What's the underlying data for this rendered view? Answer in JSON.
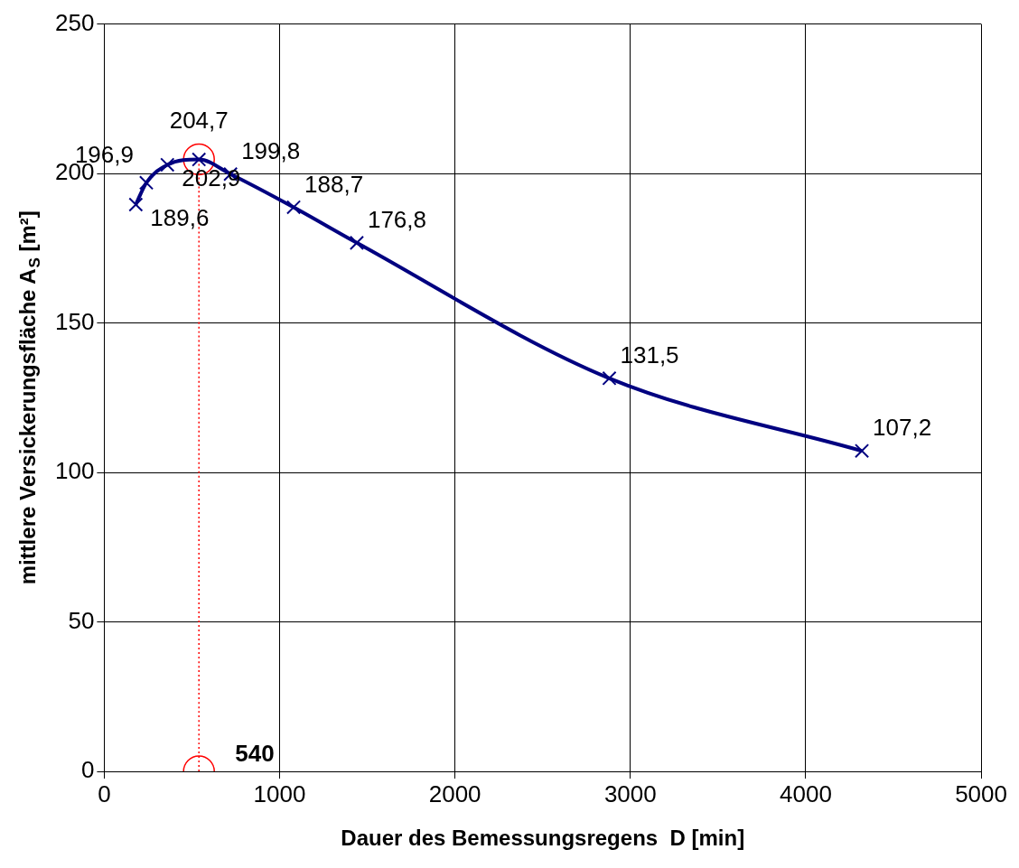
{
  "chart_data": {
    "type": "line",
    "xlabel": "Dauer des Bemessungsregens  D [min]",
    "ylabel": "mittlere Versickerungsfläche A$_{S}$ [m²]",
    "xlim": [
      0,
      5000
    ],
    "xticks": [
      0,
      1000,
      2000,
      3000,
      4000,
      5000
    ],
    "ylim": [
      0,
      250
    ],
    "yticks": [
      0,
      50,
      100,
      150,
      200,
      250
    ],
    "grid": true,
    "series": [
      {
        "color": "#000080",
        "marker": "cross",
        "x": [
          180,
          240,
          360,
          540,
          720,
          1080,
          1440,
          2880,
          4320
        ],
        "values": [
          189.6,
          196.9,
          202.9,
          204.7,
          199.8,
          188.7,
          176.8,
          131.5,
          107.2
        ],
        "value_labels": [
          "189,6",
          "196,9",
          "202,9",
          "204,7",
          "199,8",
          "188,7",
          "176,8",
          "131,5",
          "107,2"
        ]
      },
      {
        "color": "#ff0000",
        "marker": "circle",
        "line_style": "dotted",
        "x": [
          540,
          540
        ],
        "values": [
          0,
          204.7
        ]
      }
    ],
    "annotations": [
      {
        "text": "540",
        "x": 540,
        "y": 0
      }
    ]
  }
}
